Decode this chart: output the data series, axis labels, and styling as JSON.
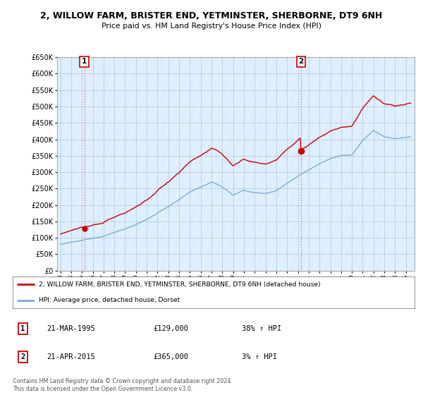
{
  "title": "2, WILLOW FARM, BRISTER END, YETMINSTER, SHERBORNE, DT9 6NH",
  "subtitle": "Price paid vs. HM Land Registry's House Price Index (HPI)",
  "ylim": [
    0,
    650000
  ],
  "yticks": [
    0,
    50000,
    100000,
    150000,
    200000,
    250000,
    300000,
    350000,
    400000,
    450000,
    500000,
    550000,
    600000,
    650000
  ],
  "ytick_labels": [
    "£0",
    "£50K",
    "£100K",
    "£150K",
    "£200K",
    "£250K",
    "£300K",
    "£350K",
    "£400K",
    "£450K",
    "£500K",
    "£550K",
    "£600K",
    "£650K"
  ],
  "sale1_date": 1995.22,
  "sale1_price": 129000,
  "sale2_date": 2015.3,
  "sale2_price": 365000,
  "legend_line1": "2, WILLOW FARM, BRISTER END, YETMINSTER, SHERBORNE, DT9 6NH (detached house)",
  "legend_line2": "HPI: Average price, detached house, Dorset",
  "table_row1": [
    "1",
    "21-MAR-1995",
    "£129,000",
    "38% ↑ HPI"
  ],
  "table_row2": [
    "2",
    "21-APR-2015",
    "£365,000",
    "3% ↑ HPI"
  ],
  "footer": "Contains HM Land Registry data © Crown copyright and database right 2024.\nThis data is licensed under the Open Government Licence v3.0.",
  "line_color_red": "#cc0000",
  "line_color_blue": "#7aadd4",
  "bg_color": "#ddeeff",
  "sale_dot_color": "#cc0000",
  "vline_color": "#dd6666"
}
